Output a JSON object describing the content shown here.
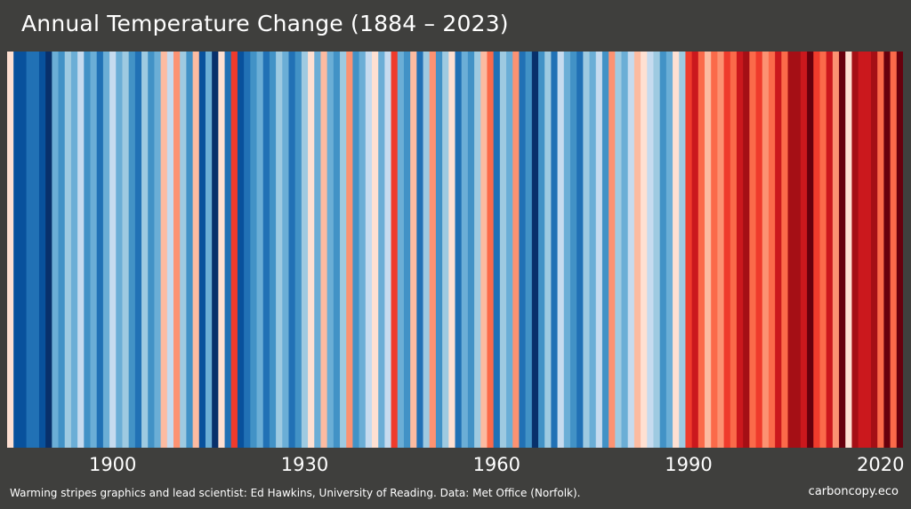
{
  "header": {
    "title": "Annual Temperature Change (1884 – 2023)"
  },
  "footer": {
    "credit": "Warming stripes graphics and lead scientist: Ed Hawkins, University of Reading. Data: Met Office (Norfolk).",
    "brand": "carboncopy.eco"
  },
  "chart_data": {
    "type": "heatmap",
    "title": "Annual Temperature Change (1884 – 2023)",
    "x_start": 1884,
    "x_end": 2023,
    "tick_years": [
      1900,
      1930,
      1960,
      1990,
      2020
    ],
    "tick_labels": [
      "1900",
      "1930",
      "1960",
      "1990",
      "2020"
    ],
    "anomaly_scale": "-3 (darkest blue) … +3 (darkest red), relative ranks as drawn",
    "colors": {
      "-3": "#08306b",
      "-2": "#08519c",
      "-1.5": "#2171b5",
      "-1": "#4292c6",
      "-0.6": "#6baed6",
      "-0.3": "#9ecae1",
      "-0.1": "#c6dbef",
      "0.1": "#fee0d2",
      "0.3": "#fcbba1",
      "0.6": "#fc9272",
      "1": "#fb6a4a",
      "1.5": "#ef3b2c",
      "2": "#cb181d",
      "2.5": "#a50f15",
      "3": "#67000d"
    },
    "values": [
      0.1,
      -2,
      -2,
      -1.5,
      -1.5,
      -2,
      -3,
      -0.6,
      -1,
      -0.3,
      -0.6,
      -0.1,
      -1,
      -0.6,
      -1.5,
      -0.6,
      -0.1,
      -0.6,
      -0.3,
      -1,
      -1.5,
      -0.3,
      -1,
      -0.6,
      0.3,
      -0.1,
      0.6,
      -0.3,
      -1,
      0.3,
      -2,
      -0.6,
      -3,
      0.1,
      -1.5,
      1.5,
      -2,
      -1.5,
      -1,
      -0.6,
      -1.5,
      -1,
      -0.3,
      -0.6,
      -1.5,
      -1,
      -0.3,
      0.1,
      -0.6,
      0.3,
      -0.6,
      -1,
      -0.3,
      0.6,
      -1,
      -0.6,
      -0.1,
      0.1,
      -0.6,
      -0.1,
      1.5,
      -0.6,
      -1,
      0.3,
      -1.5,
      -0.3,
      0.6,
      -1,
      -0.3,
      0.1,
      -1.5,
      -0.6,
      -1,
      -0.3,
      0.3,
      1,
      -1.5,
      -0.3,
      -0.6,
      0.6,
      -1.5,
      -1,
      -3,
      -1,
      -0.3,
      -1.5,
      -0.1,
      -0.6,
      -1,
      -1.5,
      -0.3,
      -0.6,
      -0.1,
      -1,
      0.6,
      -0.3,
      -0.6,
      -0.1,
      0.3,
      0.1,
      -0.1,
      -0.3,
      -1,
      -0.6,
      0.1,
      -0.3,
      1.5,
      2,
      1,
      0.3,
      1,
      0.6,
      1.5,
      1,
      2,
      2.5,
      1,
      1.5,
      0.6,
      1,
      2,
      1,
      2.5,
      2.5,
      2,
      3,
      1.5,
      1,
      2,
      0.6,
      3,
      0.1,
      2.5,
      2,
      2,
      2.5,
      1,
      3,
      1,
      3
    ]
  }
}
